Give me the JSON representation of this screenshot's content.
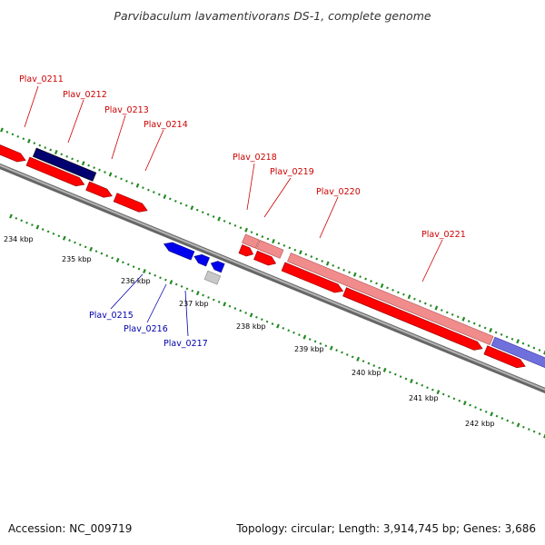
{
  "title": "Parvibaculum lavamentivorans DS-1, complete genome",
  "footer": {
    "accession": "Accession: NC_009719",
    "topology": "Topology: circular; Length: 3,914,745 bp; Genes: 3,686"
  },
  "scale_labels": [
    "234 kbp",
    "235 kbp",
    "236 kbp",
    "237 kbp",
    "238 kbp",
    "239 kbp",
    "240 kbp",
    "241 kbp",
    "242 kbp"
  ],
  "gene_labels": {
    "forward": [
      "Plav_0211",
      "Plav_0212",
      "Plav_0213",
      "Plav_0214",
      "Plav_0218",
      "Plav_0219",
      "Plav_0220",
      "Plav_0221"
    ],
    "reverse": [
      "Plav_0215",
      "Plav_0216",
      "Plav_0217"
    ]
  },
  "colors": {
    "forward_label": "#cc0000",
    "reverse_label": "#0000aa",
    "cds_forward": "#ff0000",
    "cds_reverse": "#0000ee",
    "gene_pink": "#f08c8c",
    "gene_navy": "#000070",
    "gene_lavender": "#7070dd",
    "gene_olive": "#5a7a1a",
    "gene_grey": "#c8c8c8",
    "tick": "#228822",
    "backbone": "#888888"
  }
}
